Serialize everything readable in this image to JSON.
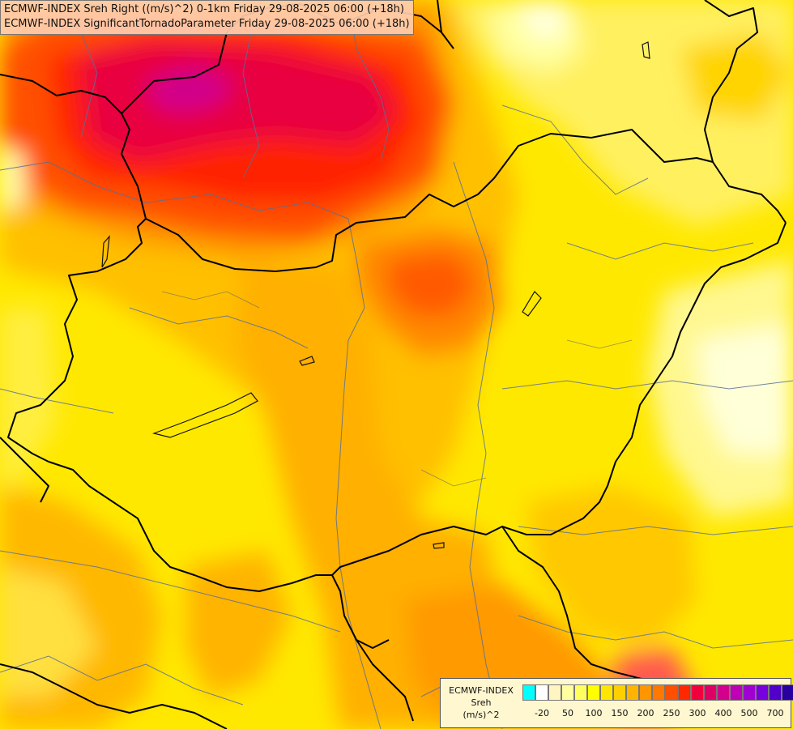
{
  "title": {
    "line1": "ECMWF-INDEX Sreh Right ((m/s)^2) 0-1km Friday 29-08-2025 06:00 (+18h)",
    "line2": "ECMWF-INDEX SignificantTornadoParameter Friday 29-08-2025 06:00 (+18h)"
  },
  "legend": {
    "line1": "ECMWF-INDEX",
    "line2": "Sreh",
    "line3": "(m/s)^2",
    "colors": [
      "#00ffff",
      "#ffffff",
      "#fff5c0",
      "#ffffa0",
      "#ffff60",
      "#ffff00",
      "#ffe600",
      "#ffd000",
      "#ffb400",
      "#ff9600",
      "#ff7800",
      "#ff5000",
      "#ff2800",
      "#f0003c",
      "#e00064",
      "#d2008c",
      "#c000b4",
      "#a000d2",
      "#7800dc",
      "#5000c8",
      "#2800a0",
      "#000080"
    ],
    "ticks": [
      "-20",
      "50",
      "100",
      "150",
      "200",
      "250",
      "300",
      "400",
      "500",
      "700"
    ]
  }
}
